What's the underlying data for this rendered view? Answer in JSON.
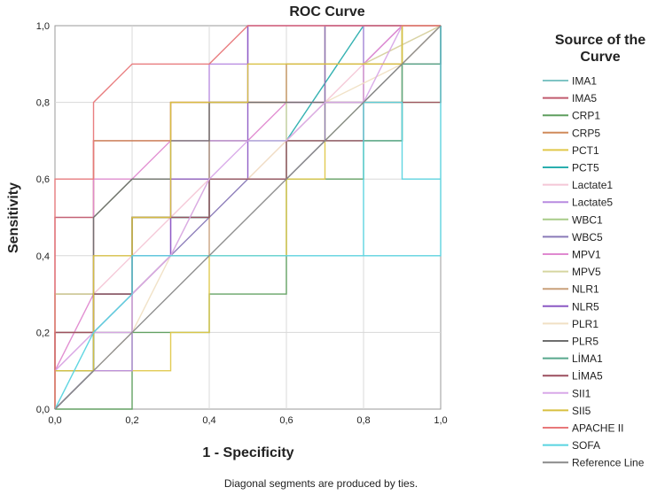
{
  "chart_data": {
    "type": "line",
    "title": "ROC Curve",
    "xlabel": "1 - Specificity",
    "ylabel": "Sensitivity",
    "xlim": [
      0,
      1
    ],
    "ylim": [
      0,
      1
    ],
    "grid": true,
    "x_ticks": [
      "0,0",
      "0,2",
      "0,4",
      "0,6",
      "0,8",
      "1,0"
    ],
    "y_ticks": [
      "0,0",
      "0,2",
      "0,4",
      "0,6",
      "0,8",
      "1,0"
    ],
    "legend_title": "Source of the Curve",
    "legend_position": "right",
    "footnote": "Diagonal segments are produced by ties.",
    "series": [
      {
        "name": "IMA1",
        "color": "#7fc4c4",
        "points": [
          [
            0,
            0
          ],
          [
            0,
            0.3
          ],
          [
            0.2,
            0.3
          ],
          [
            0.2,
            0.5
          ],
          [
            0.4,
            0.5
          ],
          [
            0.4,
            0.7
          ],
          [
            0.6,
            0.7
          ],
          [
            0.6,
            0.8
          ],
          [
            0.8,
            0.8
          ],
          [
            0.8,
            1.0
          ],
          [
            1.0,
            1.0
          ]
        ]
      },
      {
        "name": "IMA5",
        "color": "#c05a6e",
        "points": [
          [
            0,
            0
          ],
          [
            0,
            0.5
          ],
          [
            0.1,
            0.5
          ],
          [
            0.1,
            0.7
          ],
          [
            0.3,
            0.7
          ],
          [
            0.3,
            0.8
          ],
          [
            0.7,
            0.8
          ],
          [
            0.7,
            1.0
          ],
          [
            1.0,
            1.0
          ]
        ]
      },
      {
        "name": "CRP1",
        "color": "#5e9e5e",
        "points": [
          [
            0,
            0
          ],
          [
            0.2,
            0
          ],
          [
            0.2,
            0.2
          ],
          [
            0.4,
            0.2
          ],
          [
            0.4,
            0.3
          ],
          [
            0.6,
            0.3
          ],
          [
            0.6,
            0.6
          ],
          [
            0.8,
            0.6
          ],
          [
            0.8,
            0.7
          ],
          [
            0.9,
            0.7
          ],
          [
            0.9,
            1.0
          ],
          [
            1.0,
            1.0
          ]
        ]
      },
      {
        "name": "CRP5",
        "color": "#d08a5a",
        "points": [
          [
            0,
            0
          ],
          [
            0,
            0.3
          ],
          [
            0.1,
            0.3
          ],
          [
            0.1,
            0.7
          ],
          [
            0.3,
            0.7
          ],
          [
            0.3,
            0.8
          ],
          [
            0.6,
            0.8
          ],
          [
            0.6,
            0.9
          ],
          [
            1.0,
            0.9
          ],
          [
            1.0,
            1.0
          ]
        ]
      },
      {
        "name": "PCT1",
        "color": "#e0c84a",
        "points": [
          [
            0,
            0
          ],
          [
            0,
            0.1
          ],
          [
            0.2,
            0.1
          ],
          [
            0.2,
            0.1
          ],
          [
            0.3,
            0.1
          ],
          [
            0.3,
            0.2
          ],
          [
            0.4,
            0.2
          ],
          [
            0.4,
            0.4
          ],
          [
            0.6,
            0.4
          ],
          [
            0.6,
            0.6
          ],
          [
            0.7,
            0.6
          ],
          [
            0.7,
            0.8
          ],
          [
            0.9,
            0.8
          ],
          [
            0.9,
            1.0
          ],
          [
            1.0,
            1.0
          ]
        ]
      },
      {
        "name": "PCT5",
        "color": "#2aaeae",
        "points": [
          [
            0,
            0
          ],
          [
            0.1,
            0.1
          ],
          [
            0.1,
            0.2
          ],
          [
            0.2,
            0.2
          ],
          [
            0.2,
            0.5
          ],
          [
            0.4,
            0.5
          ],
          [
            0.4,
            0.7
          ],
          [
            0.6,
            0.7
          ],
          [
            0.8,
            1.0
          ],
          [
            1.0,
            1.0
          ]
        ]
      },
      {
        "name": "Lactate1",
        "color": "#f4c6d6",
        "points": [
          [
            0,
            0
          ],
          [
            0,
            0.1
          ],
          [
            0.1,
            0.2
          ],
          [
            0.1,
            0.3
          ],
          [
            0.3,
            0.5
          ],
          [
            0.4,
            0.6
          ],
          [
            0.5,
            0.6
          ],
          [
            0.6,
            0.7
          ],
          [
            0.7,
            0.8
          ],
          [
            0.8,
            0.9
          ],
          [
            1.0,
            1.0
          ]
        ]
      },
      {
        "name": "Lactate5",
        "color": "#b88be0",
        "points": [
          [
            0,
            0
          ],
          [
            0.1,
            0.1
          ],
          [
            0.2,
            0.1
          ],
          [
            0.2,
            0.3
          ],
          [
            0.3,
            0.4
          ],
          [
            0.3,
            0.6
          ],
          [
            0.4,
            0.6
          ],
          [
            0.4,
            0.9
          ],
          [
            0.5,
            0.9
          ],
          [
            0.5,
            1.0
          ],
          [
            0.8,
            1.0
          ],
          [
            0.8,
            0.9
          ],
          [
            0.9,
            1.0
          ],
          [
            1.0,
            1.0
          ]
        ]
      },
      {
        "name": "WBC1",
        "color": "#a8cc88",
        "points": [
          [
            0,
            0
          ],
          [
            0,
            0.2
          ],
          [
            0.1,
            0.2
          ],
          [
            0.1,
            0.5
          ],
          [
            0.2,
            0.6
          ],
          [
            0.4,
            0.6
          ],
          [
            0.6,
            0.6
          ],
          [
            0.8,
            0.8
          ],
          [
            1.0,
            0.8
          ],
          [
            1.0,
            1.0
          ]
        ]
      },
      {
        "name": "WBC5",
        "color": "#8a7ab8",
        "points": [
          [
            0,
            0
          ],
          [
            0,
            0.2
          ],
          [
            0.1,
            0.2
          ],
          [
            0.2,
            0.3
          ],
          [
            0.3,
            0.4
          ],
          [
            0.5,
            0.6
          ],
          [
            0.6,
            0.6
          ],
          [
            0.7,
            0.7
          ],
          [
            0.7,
            1.0
          ],
          [
            1.0,
            1.0
          ]
        ]
      },
      {
        "name": "MPV1",
        "color": "#e08ad0",
        "points": [
          [
            0,
            0
          ],
          [
            0,
            0.1
          ],
          [
            0.1,
            0.3
          ],
          [
            0.1,
            0.6
          ],
          [
            0.2,
            0.6
          ],
          [
            0.3,
            0.7
          ],
          [
            0.5,
            0.7
          ],
          [
            0.6,
            0.8
          ],
          [
            0.8,
            0.8
          ],
          [
            0.8,
            0.9
          ],
          [
            0.9,
            1.0
          ],
          [
            1.0,
            1.0
          ]
        ]
      },
      {
        "name": "MPV5",
        "color": "#d6d6a0",
        "points": [
          [
            0,
            0
          ],
          [
            0,
            0.3
          ],
          [
            0.2,
            0.3
          ],
          [
            0.2,
            0.5
          ],
          [
            0.3,
            0.5
          ],
          [
            0.3,
            0.6
          ],
          [
            0.6,
            0.6
          ],
          [
            0.6,
            0.9
          ],
          [
            0.8,
            0.9
          ],
          [
            1.0,
            1.0
          ]
        ]
      },
      {
        "name": "NLR1",
        "color": "#c9a07a",
        "points": [
          [
            0,
            0
          ],
          [
            0,
            0.2
          ],
          [
            0.1,
            0.2
          ],
          [
            0.2,
            0.2
          ],
          [
            0.2,
            0.3
          ],
          [
            0.3,
            0.4
          ],
          [
            0.4,
            0.4
          ],
          [
            0.4,
            0.8
          ],
          [
            0.6,
            0.8
          ],
          [
            0.6,
            0.9
          ],
          [
            0.9,
            0.9
          ],
          [
            1.0,
            1.0
          ]
        ]
      },
      {
        "name": "NLR5",
        "color": "#8c58c4",
        "points": [
          [
            0,
            0
          ],
          [
            0.1,
            0.1
          ],
          [
            0.1,
            0.3
          ],
          [
            0.2,
            0.3
          ],
          [
            0.2,
            0.4
          ],
          [
            0.3,
            0.4
          ],
          [
            0.3,
            0.6
          ],
          [
            0.5,
            0.6
          ],
          [
            0.5,
            1.0
          ],
          [
            1.0,
            1.0
          ]
        ]
      },
      {
        "name": "PLR1",
        "color": "#f0e0c4",
        "points": [
          [
            0,
            0
          ],
          [
            0,
            0.1
          ],
          [
            0.1,
            0.1
          ],
          [
            0.2,
            0.2
          ],
          [
            0.3,
            0.4
          ],
          [
            0.4,
            0.6
          ],
          [
            0.5,
            0.6
          ],
          [
            0.6,
            0.7
          ],
          [
            0.7,
            0.8
          ],
          [
            0.9,
            0.9
          ],
          [
            1.0,
            1.0
          ]
        ]
      },
      {
        "name": "PLR5",
        "color": "#6e6e6e",
        "points": [
          [
            0,
            0
          ],
          [
            0.1,
            0.1
          ],
          [
            0.1,
            0.5
          ],
          [
            0.2,
            0.6
          ],
          [
            0.3,
            0.6
          ],
          [
            0.3,
            0.7
          ],
          [
            0.4,
            0.7
          ],
          [
            0.4,
            0.8
          ],
          [
            0.8,
            0.8
          ],
          [
            0.9,
            0.9
          ],
          [
            1.0,
            0.9
          ],
          [
            1.0,
            1.0
          ]
        ]
      },
      {
        "name": "LİMA1",
        "color": "#58a88c",
        "points": [
          [
            0,
            0
          ],
          [
            0,
            0.1
          ],
          [
            0.1,
            0.1
          ],
          [
            0.1,
            0.3
          ],
          [
            0.2,
            0.3
          ],
          [
            0.2,
            0.5
          ],
          [
            0.4,
            0.5
          ],
          [
            0.4,
            0.6
          ],
          [
            0.6,
            0.6
          ],
          [
            0.6,
            0.7
          ],
          [
            0.9,
            0.7
          ],
          [
            0.9,
            0.9
          ],
          [
            1.0,
            0.9
          ],
          [
            1.0,
            1.0
          ]
        ]
      },
      {
        "name": "LİMA5",
        "color": "#9c4e5e",
        "points": [
          [
            0,
            0
          ],
          [
            0,
            0.2
          ],
          [
            0.1,
            0.2
          ],
          [
            0.1,
            0.3
          ],
          [
            0.2,
            0.3
          ],
          [
            0.2,
            0.5
          ],
          [
            0.4,
            0.5
          ],
          [
            0.4,
            0.6
          ],
          [
            0.6,
            0.6
          ],
          [
            0.6,
            0.7
          ],
          [
            0.8,
            0.7
          ],
          [
            0.8,
            0.8
          ],
          [
            1.0,
            0.8
          ],
          [
            1.0,
            1.0
          ]
        ]
      },
      {
        "name": "SII1",
        "color": "#d8a8e8",
        "points": [
          [
            0,
            0
          ],
          [
            0,
            0.1
          ],
          [
            0.1,
            0.2
          ],
          [
            0.2,
            0.2
          ],
          [
            0.2,
            0.3
          ],
          [
            0.3,
            0.4
          ],
          [
            0.4,
            0.6
          ],
          [
            0.5,
            0.7
          ],
          [
            0.6,
            0.7
          ],
          [
            0.7,
            0.8
          ],
          [
            0.8,
            0.8
          ],
          [
            0.9,
            1.0
          ],
          [
            1.0,
            1.0
          ]
        ]
      },
      {
        "name": "SII5",
        "color": "#d8c040",
        "points": [
          [
            0,
            0
          ],
          [
            0,
            0.1
          ],
          [
            0.1,
            0.1
          ],
          [
            0.1,
            0.4
          ],
          [
            0.2,
            0.4
          ],
          [
            0.2,
            0.5
          ],
          [
            0.3,
            0.5
          ],
          [
            0.3,
            0.8
          ],
          [
            0.5,
            0.8
          ],
          [
            0.5,
            0.9
          ],
          [
            0.9,
            0.9
          ],
          [
            0.9,
            1.0
          ],
          [
            1.0,
            1.0
          ]
        ]
      },
      {
        "name": "APACHE II",
        "color": "#e8787a",
        "points": [
          [
            0,
            0
          ],
          [
            0,
            0.6
          ],
          [
            0.1,
            0.6
          ],
          [
            0.1,
            0.8
          ],
          [
            0.2,
            0.9
          ],
          [
            0.4,
            0.9
          ],
          [
            0.5,
            1.0
          ],
          [
            1.0,
            1.0
          ]
        ]
      },
      {
        "name": "SOFA",
        "color": "#58d4e0",
        "points": [
          [
            0,
            0
          ],
          [
            0.1,
            0.2
          ],
          [
            0.2,
            0.3
          ],
          [
            0.2,
            0.4
          ],
          [
            0.4,
            0.4
          ],
          [
            0.6,
            0.4
          ],
          [
            1.0,
            0.4
          ],
          [
            1.0,
            0.6
          ],
          [
            0.9,
            0.6
          ],
          [
            0.9,
            0.8
          ],
          [
            0.8,
            0.8
          ],
          [
            0.8,
            0.4
          ],
          [
            1.0,
            0.4
          ],
          [
            1.0,
            1.0
          ]
        ]
      },
      {
        "name": "Reference Line",
        "color": "#8a8a8a",
        "points": [
          [
            0,
            0
          ],
          [
            1.0,
            1.0
          ]
        ]
      }
    ]
  }
}
